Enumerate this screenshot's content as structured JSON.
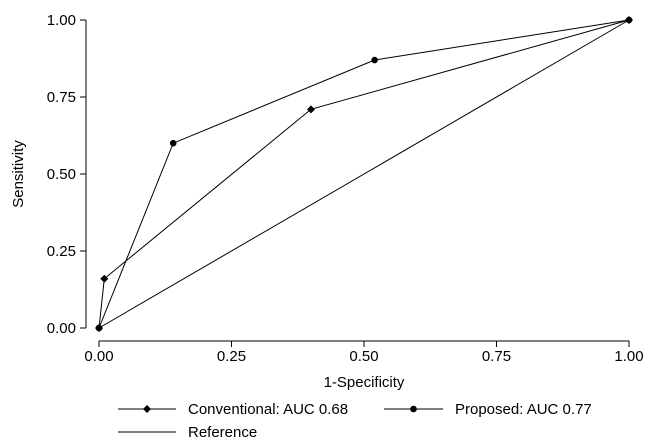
{
  "chart_data": {
    "type": "line",
    "title": "",
    "xlabel": "1-Specificity",
    "ylabel": "Sensitivity",
    "xlim": [
      0,
      1
    ],
    "ylim": [
      0,
      1
    ],
    "xticks": [
      "0.00",
      "0.25",
      "0.50",
      "0.75",
      "1.00"
    ],
    "yticks": [
      "0.00",
      "0.25",
      "0.50",
      "0.75",
      "1.00"
    ],
    "grid": false,
    "legend_position": "bottom",
    "series": [
      {
        "name": "Conventional: AUC 0.68",
        "marker": "diamond",
        "color": "#000000",
        "x": [
          0,
          0.01,
          0.4,
          1.0
        ],
        "y": [
          0,
          0.16,
          0.71,
          1.0
        ]
      },
      {
        "name": "Proposed: AUC 0.77",
        "marker": "circle",
        "color": "#000000",
        "x": [
          0,
          0.14,
          0.52,
          1.0
        ],
        "y": [
          0,
          0.6,
          0.87,
          1.0
        ]
      },
      {
        "name": "Reference",
        "marker": "none",
        "color": "#000000",
        "x": [
          0,
          1.0
        ],
        "y": [
          0,
          1.0
        ]
      }
    ]
  }
}
